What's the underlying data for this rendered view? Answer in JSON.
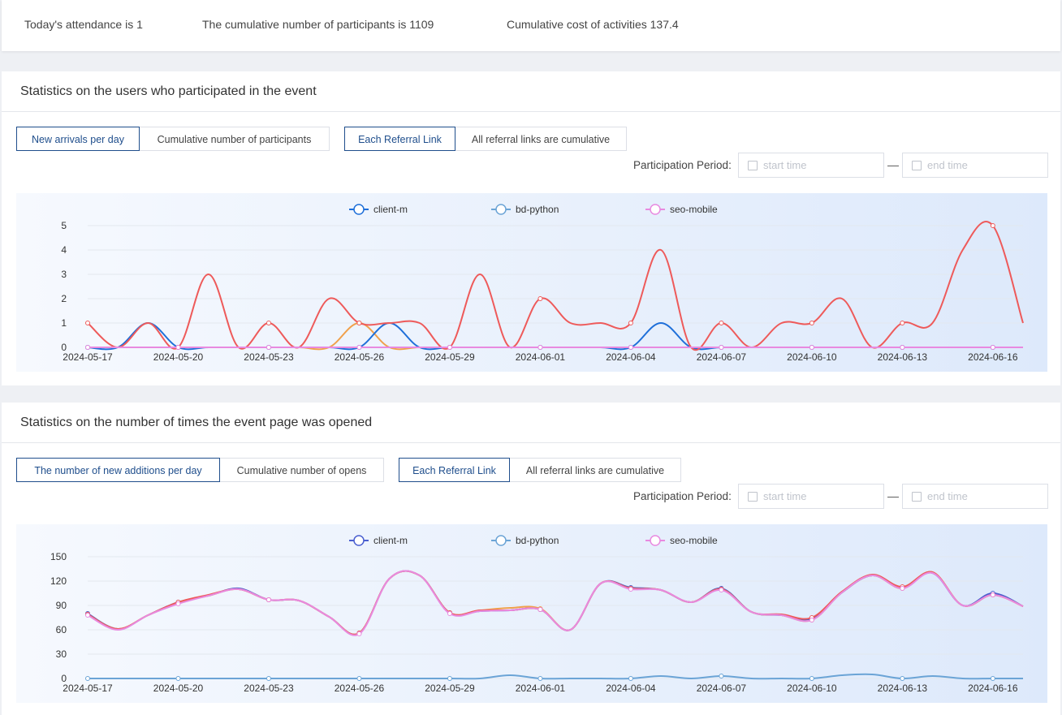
{
  "stats": [
    "Today's attendance is 1",
    "The cumulative number of participants is 1109",
    "Cumulative cost of activities 137.4"
  ],
  "panels": [
    {
      "title": "Statistics on the users who participated in the event",
      "buttons": [
        [
          "New arrivals per day",
          "Cumulative number of participants"
        ],
        [
          "Each Referral Link",
          "All referral links are cumulative"
        ]
      ],
      "period_label": "Participation Period:",
      "start_placeholder": "start time",
      "separator": "—",
      "end_placeholder": "end time"
    },
    {
      "title": "Statistics on the number of times the event page was opened",
      "buttons": [
        [
          "The number of new additions per day",
          "Cumulative number of opens"
        ],
        [
          "Each Referral Link",
          "All referral links are cumulative"
        ]
      ],
      "period_label": "Participation Period:",
      "start_placeholder": "start time",
      "separator": "—",
      "end_placeholder": "end time"
    }
  ],
  "chart_data": [
    {
      "type": "line",
      "categories": [
        "2024-05-17",
        null,
        null,
        "2024-05-20",
        null,
        null,
        "2024-05-23",
        null,
        null,
        "2024-05-26",
        null,
        null,
        "2024-05-29",
        null,
        null,
        "2024-06-01",
        null,
        null,
        "2024-06-04",
        null,
        null,
        "2024-06-07",
        null,
        null,
        "2024-06-10",
        null,
        null,
        "2024-06-13",
        null,
        null,
        "2024-06-16",
        null
      ],
      "ylim": [
        0,
        5
      ],
      "yticks": [
        0,
        1,
        2,
        3,
        4,
        5
      ],
      "grid": true,
      "legend": "top",
      "smooth": true,
      "series": [
        {
          "color": "#f0a04b",
          "values": [
            0,
            0,
            0,
            0,
            0,
            0,
            0,
            0,
            0,
            1,
            0,
            0,
            0,
            0,
            0,
            0,
            0,
            0,
            0,
            0,
            0,
            0,
            0,
            0,
            0,
            0,
            0,
            0,
            0,
            0,
            0,
            0
          ]
        },
        {
          "name": "client-m",
          "color": "#1e6fd9",
          "values": [
            0,
            0,
            1,
            0,
            0,
            0,
            0,
            0,
            0,
            0,
            1,
            0,
            0,
            0,
            0,
            0,
            0,
            0,
            0,
            1,
            0,
            0,
            0,
            0,
            0,
            0,
            0,
            0,
            0,
            0,
            0,
            0
          ]
        },
        {
          "name": "bd-python",
          "color": "#6ba4d6",
          "values": [
            0,
            0,
            0,
            0,
            0,
            0,
            0,
            0,
            0,
            0,
            0,
            0,
            0,
            0,
            0,
            0,
            0,
            0,
            0,
            0,
            0,
            0,
            0,
            0,
            0,
            0,
            0,
            0,
            0,
            0,
            0,
            0
          ]
        },
        {
          "color": "#ee5a5a",
          "values": [
            1,
            0,
            1,
            0,
            3,
            0,
            1,
            0,
            2,
            1,
            1,
            1,
            0,
            3,
            0,
            2,
            1,
            1,
            1,
            4,
            0,
            1,
            0,
            1,
            1,
            2,
            0,
            1,
            1,
            4,
            5,
            1
          ]
        },
        {
          "name": "seo-mobile",
          "color": "#e88ae0",
          "values": [
            0,
            0,
            0,
            0,
            0,
            0,
            0,
            0,
            0,
            0,
            0,
            0,
            0,
            0,
            0,
            0,
            0,
            0,
            0,
            0,
            0,
            0,
            0,
            0,
            0,
            0,
            0,
            0,
            0,
            0,
            0,
            0
          ]
        }
      ]
    },
    {
      "type": "line",
      "categories": [
        "2024-05-17",
        null,
        null,
        "2024-05-20",
        null,
        null,
        "2024-05-23",
        null,
        null,
        "2024-05-26",
        null,
        null,
        "2024-05-29",
        null,
        null,
        "2024-06-01",
        null,
        null,
        "2024-06-04",
        null,
        null,
        "2024-06-07",
        null,
        null,
        "2024-06-10",
        null,
        null,
        "2024-06-13",
        null,
        null,
        "2024-06-16",
        null
      ],
      "ylim": [
        0,
        150
      ],
      "yticks": [
        0,
        30,
        60,
        90,
        120,
        150
      ],
      "grid": true,
      "legend": "top",
      "smooth": true,
      "series": [
        {
          "name": "client-m",
          "color": "#4a5fd0",
          "values": [
            80,
            61,
            78,
            94,
            102,
            111,
            97,
            96,
            76,
            56,
            123,
            127,
            81,
            83,
            84,
            85,
            60,
            117,
            112,
            109,
            94,
            111,
            82,
            78,
            74,
            106,
            127,
            112,
            130,
            90,
            105,
            89
          ]
        },
        {
          "color": "#f0a04b",
          "values": [
            79,
            61,
            78,
            93,
            102,
            110,
            97,
            96,
            76,
            56,
            123,
            127,
            81,
            84,
            87,
            86,
            60,
            117,
            111,
            109,
            94,
            110,
            82,
            78,
            72,
            106,
            127,
            111,
            131,
            90,
            103,
            89
          ]
        },
        {
          "color": "#ee5a5a",
          "values": [
            79,
            61,
            78,
            94,
            103,
            110,
            97,
            96,
            76,
            56,
            123,
            127,
            81,
            84,
            84,
            85,
            60,
            117,
            111,
            109,
            94,
            110,
            82,
            79,
            75,
            107,
            128,
            113,
            131,
            90,
            103,
            89
          ]
        },
        {
          "name": "bd-python",
          "color": "#6ba4d6",
          "values": [
            0,
            0,
            0,
            0,
            0,
            0,
            0,
            0,
            0,
            0,
            0,
            0,
            0,
            0,
            4,
            0,
            0,
            0,
            0,
            3,
            0,
            3,
            0,
            0,
            0,
            4,
            5,
            0,
            3,
            0,
            0,
            0
          ]
        },
        {
          "name": "seo-mobile",
          "color": "#e88ae0",
          "values": [
            78,
            60,
            78,
            92,
            102,
            110,
            97,
            96,
            76,
            55,
            123,
            127,
            80,
            83,
            84,
            85,
            60,
            117,
            110,
            109,
            94,
            109,
            82,
            78,
            72,
            106,
            127,
            111,
            130,
            90,
            103,
            89
          ]
        }
      ]
    }
  ]
}
